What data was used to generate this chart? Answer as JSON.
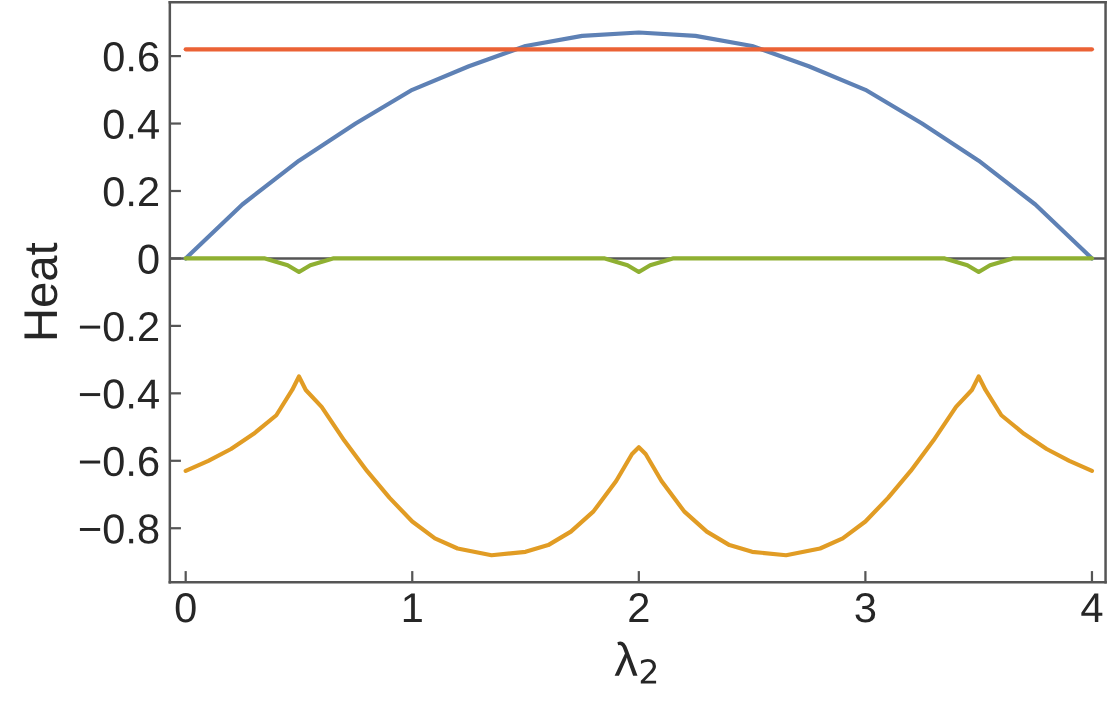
{
  "chart_data": {
    "type": "line",
    "xlabel": "λ$_{2}$",
    "ylabel": "Heat",
    "xlim": [
      -0.07,
      4.06
    ],
    "ylim": [
      -0.96,
      0.76
    ],
    "xticks": [
      0,
      1,
      2,
      3,
      4
    ],
    "yticks": [
      {
        "value": -0.8,
        "label": "−0.8"
      },
      {
        "value": -0.6,
        "label": "−0.6"
      },
      {
        "value": -0.4,
        "label": "−0.4"
      },
      {
        "value": -0.2,
        "label": "−0.2"
      },
      0,
      0.2,
      0.4,
      0.6
    ],
    "grid": false,
    "legend": false,
    "marker": "none",
    "line_style": "solid",
    "ref_lines": [
      {
        "axis": "y",
        "value": 0,
        "color": "#555555"
      }
    ],
    "series": [
      {
        "color": "#5e81b5",
        "x": [
          0,
          0.25,
          0.5,
          0.75,
          1,
          1.25,
          1.5,
          1.75,
          2,
          2.25,
          2.5,
          2.75,
          3,
          3.25,
          3.5,
          3.75,
          4
        ],
        "values": [
          0,
          0.16,
          0.29,
          0.4,
          0.5,
          0.57,
          0.63,
          0.66,
          0.67,
          0.66,
          0.63,
          0.57,
          0.5,
          0.4,
          0.29,
          0.16,
          0
        ]
      },
      {
        "color": "#e19c24",
        "x": [
          0,
          0.1,
          0.2,
          0.3,
          0.4,
          0.47,
          0.5,
          0.53,
          0.6,
          0.7,
          0.8,
          0.9,
          1.0,
          1.1,
          1.2,
          1.35,
          1.5,
          1.6,
          1.7,
          1.8,
          1.9,
          1.97,
          2.0,
          2.03,
          2.1,
          2.2,
          2.3,
          2.4,
          2.5,
          2.65,
          2.8,
          2.9,
          3.0,
          3.1,
          3.2,
          3.3,
          3.4,
          3.47,
          3.5,
          3.53,
          3.6,
          3.7,
          3.8,
          3.9,
          4.0
        ],
        "values": [
          -0.63,
          -0.6,
          -0.565,
          -0.52,
          -0.465,
          -0.39,
          -0.35,
          -0.39,
          -0.44,
          -0.54,
          -0.63,
          -0.71,
          -0.78,
          -0.83,
          -0.86,
          -0.88,
          -0.87,
          -0.85,
          -0.81,
          -0.75,
          -0.66,
          -0.58,
          -0.56,
          -0.58,
          -0.66,
          -0.75,
          -0.81,
          -0.85,
          -0.87,
          -0.88,
          -0.86,
          -0.83,
          -0.78,
          -0.71,
          -0.63,
          -0.54,
          -0.44,
          -0.39,
          -0.35,
          -0.39,
          -0.465,
          -0.52,
          -0.565,
          -0.6,
          -0.63
        ]
      },
      {
        "color": "#8fb032",
        "x": [
          0,
          0.35,
          0.45,
          0.5,
          0.55,
          0.65,
          1.85,
          1.95,
          2,
          2.05,
          2.15,
          3.35,
          3.45,
          3.5,
          3.55,
          3.65,
          4
        ],
        "values": [
          0,
          0,
          -0.02,
          -0.04,
          -0.02,
          0,
          0,
          -0.02,
          -0.04,
          -0.02,
          0,
          0,
          -0.02,
          -0.04,
          -0.02,
          0,
          0
        ]
      },
      {
        "color": "#eb6235",
        "x": [
          0,
          4
        ],
        "values": [
          0.62,
          0.62
        ]
      }
    ]
  }
}
